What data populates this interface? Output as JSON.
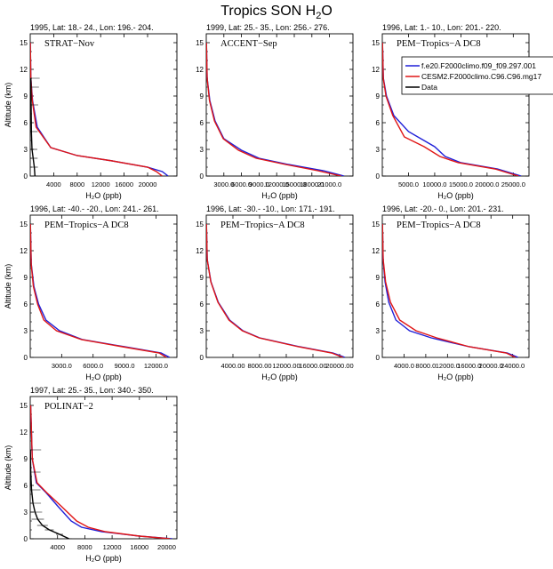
{
  "figure": {
    "title": "Tropics SON H",
    "title_sub": "2",
    "title_end": "O"
  },
  "colors": {
    "model1": "#1f1fd8",
    "model2": "#e01515",
    "data": "#000000"
  },
  "legend": {
    "entries": [
      {
        "label": "f.e20.F2000climo.f09_f09.297.001",
        "color": "#1f1fd8"
      },
      {
        "label": "CESM2.F2000climo.C96.C96.mg17",
        "color": "#e01515"
      },
      {
        "label": "Data",
        "color": "#000000"
      }
    ]
  },
  "chart_data": [
    {
      "type": "line",
      "header": "1995, Lat: 18.- 24., Lon: 196.- 204.",
      "campaign": "STRAT−Nov",
      "xlabel": "H₂O (ppb)",
      "ylabel": "Altitude (km)",
      "xlim": [
        0,
        25000
      ],
      "ylim": [
        0,
        16
      ],
      "xticks": [
        4000,
        8000,
        12000,
        16000,
        20000
      ],
      "xtick_labels": [
        "4000",
        "8000",
        "12000",
        "16000",
        "20000"
      ],
      "yticks": [
        0,
        3,
        6,
        9,
        12,
        15
      ],
      "series": [
        {
          "name": "f.e20.F2000climo.f09_f09.297.001",
          "x": [
            23500,
            22500,
            20000,
            14000,
            8000,
            3500,
            1200,
            400,
            100,
            20
          ],
          "y": [
            0,
            0.5,
            1,
            1.7,
            2.3,
            3.2,
            5.5,
            8.5,
            11,
            15
          ]
        },
        {
          "name": "CESM2.F2000climo.C96.C96.mg17",
          "x": [
            22500,
            21500,
            20000,
            14000,
            8000,
            3500,
            1000,
            350,
            100,
            20
          ],
          "y": [
            0,
            0.5,
            1,
            1.7,
            2.3,
            3.2,
            5.5,
            8.5,
            11,
            15
          ]
        },
        {
          "name": "Data",
          "x": [
            800,
            700,
            500,
            300,
            200,
            150,
            120,
            100
          ],
          "y": [
            0,
            1,
            2,
            3,
            5,
            8,
            10,
            11
          ]
        }
      ]
    },
    {
      "type": "line",
      "header": "1999, Lat: 25.- 35., Lon: 256.- 276.",
      "campaign": "ACCENT−Sep",
      "xlabel": "H₂O (ppb)",
      "ylabel": "",
      "xlim": [
        0,
        25000
      ],
      "ylim": [
        0,
        16
      ],
      "xticks": [
        3000,
        6000,
        9000,
        12000,
        15000,
        18000,
        21000
      ],
      "xtick_labels": [
        "3000.0",
        "6000.0",
        "9000.0",
        "12000.0",
        "15000.0",
        "18000.0",
        "21000.0"
      ],
      "yticks": [
        0,
        3,
        6,
        9,
        12,
        15
      ],
      "series": [
        {
          "name": "f.e20.F2000climo.f09_f09.297.001",
          "x": [
            23500,
            20000,
            14000,
            9000,
            6000,
            3000,
            1500,
            600,
            150,
            30
          ],
          "y": [
            0,
            0.6,
            1.3,
            2.0,
            2.9,
            4.2,
            6.2,
            8.5,
            11,
            15
          ]
        },
        {
          "name": "CESM2.F2000climo.C96.C96.mg17",
          "x": [
            23000,
            19000,
            13500,
            8500,
            5500,
            2900,
            1400,
            550,
            150,
            30
          ],
          "y": [
            0,
            0.6,
            1.3,
            2.0,
            2.9,
            4.2,
            6.2,
            8.5,
            11,
            15
          ]
        }
      ]
    },
    {
      "type": "line",
      "header": "1996, Lat: 1.- 10., Lon: 201.- 220.",
      "campaign": "PEM−Tropics−A DC8",
      "xlabel": "H₂O (ppb)",
      "ylabel": "",
      "xlim": [
        0,
        28000
      ],
      "ylim": [
        0,
        16
      ],
      "xticks": [
        5000,
        10000,
        15000,
        20000,
        25000
      ],
      "xtick_labels": [
        "5000.0",
        "10000.0",
        "15000.0",
        "20000.0",
        "25000.0"
      ],
      "yticks": [
        0,
        3,
        6,
        9,
        12,
        15
      ],
      "series": [
        {
          "name": "f.e20.F2000climo.f09_f09.297.001",
          "x": [
            26500,
            22000,
            15000,
            12000,
            10000,
            5000,
            2200,
            800,
            200,
            40
          ],
          "y": [
            0,
            0.8,
            1.5,
            2.2,
            3.3,
            5.0,
            6.8,
            9,
            11,
            15
          ]
        },
        {
          "name": "CESM2.F2000climo.C96.C96.mg17",
          "x": [
            26000,
            21500,
            14500,
            11000,
            8000,
            4200,
            2000,
            700,
            180,
            40
          ],
          "y": [
            0,
            0.8,
            1.5,
            2.2,
            3.3,
            4.4,
            6.8,
            9,
            11,
            15
          ]
        }
      ]
    },
    {
      "type": "line",
      "header": "1996, Lat: -40.- -20., Lon: 241.- 261.",
      "campaign": "PEM−Tropics−A DC8",
      "xlabel": "H₂O (ppb)",
      "ylabel": "Altitude (km)",
      "xlim": [
        0,
        14000
      ],
      "ylim": [
        0,
        16
      ],
      "xticks": [
        3000,
        6000,
        9000,
        12000
      ],
      "xtick_labels": [
        "3000.0",
        "6000.0",
        "9000.0",
        "12000.0"
      ],
      "yticks": [
        0,
        3,
        6,
        9,
        12,
        15
      ],
      "series": [
        {
          "name": "f.e20.F2000climo.f09_f09.297.001",
          "x": [
            13300,
            12500,
            9000,
            5000,
            2800,
            1500,
            800,
            350,
            100,
            20
          ],
          "y": [
            0,
            0.5,
            1.2,
            2.0,
            3.0,
            4.2,
            6,
            8,
            10.5,
            15
          ]
        },
        {
          "name": "CESM2.F2000climo.C96.C96.mg17",
          "x": [
            13000,
            12300,
            8800,
            4900,
            2500,
            1300,
            700,
            300,
            90,
            20
          ],
          "y": [
            0,
            0.5,
            1.2,
            2.0,
            3.0,
            4.2,
            6,
            8,
            10.5,
            15
          ]
        }
      ]
    },
    {
      "type": "line",
      "header": "1996, Lat: -30.- -10., Lon: 171.- 191.",
      "campaign": "PEM−Tropics−A DC8",
      "xlabel": "H₂O (ppb)",
      "ylabel": "",
      "xlim": [
        0,
        22000
      ],
      "ylim": [
        0,
        16
      ],
      "xticks": [
        4000,
        8000,
        12000,
        16000,
        20000
      ],
      "xtick_labels": [
        "4000.00",
        "8000.00",
        "12000.00",
        "16000.00",
        "20000.00"
      ],
      "yticks": [
        0,
        3,
        6,
        9,
        12,
        15
      ],
      "series": [
        {
          "name": "f.e20.F2000climo.f09_f09.297.001",
          "x": [
            20800,
            19000,
            14000,
            8000,
            5500,
            3500,
            1800,
            700,
            150,
            30
          ],
          "y": [
            0,
            0.5,
            1.2,
            2.2,
            3.0,
            4.2,
            6.2,
            8.5,
            11,
            15
          ]
        },
        {
          "name": "CESM2.F2000climo.C96.C96.mg17",
          "x": [
            20500,
            18800,
            13800,
            7900,
            5400,
            3400,
            1750,
            680,
            150,
            30
          ],
          "y": [
            0,
            0.5,
            1.2,
            2.2,
            3.0,
            4.2,
            6.2,
            8.5,
            11,
            15
          ]
        }
      ]
    },
    {
      "type": "line",
      "header": "1996, Lat: -20.- 0., Lon: 201.- 231.",
      "campaign": "PEM−Tropics−A DC8",
      "xlabel": "H₂O (ppb)",
      "ylabel": "",
      "xlim": [
        0,
        27000
      ],
      "ylim": [
        0,
        16
      ],
      "xticks": [
        4000,
        8000,
        12000,
        16000,
        20000,
        24000
      ],
      "xtick_labels": [
        "4000.0",
        "8000.0",
        "12000.0",
        "16000.0",
        "20000.0",
        "24000.0"
      ],
      "yticks": [
        0,
        3,
        6,
        9,
        12,
        15
      ],
      "series": [
        {
          "name": "f.e20.F2000climo.f09_f09.297.001",
          "x": [
            25000,
            23000,
            16000,
            9000,
            5000,
            2500,
            1200,
            500,
            150,
            30
          ],
          "y": [
            0,
            0.5,
            1.2,
            2.2,
            3.0,
            4.2,
            6.2,
            8.5,
            11,
            15
          ]
        },
        {
          "name": "CESM2.F2000climo.C96.C96.mg17",
          "x": [
            24500,
            22800,
            16000,
            10000,
            6200,
            3200,
            1500,
            600,
            160,
            30
          ],
          "y": [
            0,
            0.5,
            1.2,
            2.2,
            3.0,
            4.2,
            6.2,
            8.5,
            11,
            15
          ]
        }
      ]
    },
    {
      "type": "line",
      "header": "1997, Lat: 25.- 35., Lon: 340.- 350.",
      "campaign": "POLINAT−2",
      "xlabel": "H₂O (ppb)",
      "ylabel": "Altitude (km)",
      "xlim": [
        0,
        21500
      ],
      "ylim": [
        0,
        16
      ],
      "xticks": [
        4000,
        8000,
        12000,
        16000,
        20000
      ],
      "xtick_labels": [
        "4000",
        "8000",
        "12000",
        "16000",
        "20000"
      ],
      "yticks": [
        0,
        3,
        6,
        9,
        12,
        15
      ],
      "series": [
        {
          "name": "f.e20.F2000climo.f09_f09.297.001",
          "x": [
            20800,
            16000,
            10500,
            7500,
            6000,
            4000,
            2300,
            900,
            300,
            60
          ],
          "y": [
            0,
            0.3,
            0.8,
            1.3,
            2.0,
            3.7,
            5.2,
            6.3,
            9,
            15
          ]
        },
        {
          "name": "CESM2.F2000climo.C96.C96.mg17",
          "x": [
            20500,
            16000,
            11000,
            8500,
            6800,
            4500,
            2400,
            1000,
            300,
            60
          ],
          "y": [
            0,
            0.3,
            0.8,
            1.3,
            2.0,
            3.7,
            5.2,
            6.3,
            9,
            15
          ]
        },
        {
          "name": "Data",
          "x": [
            5700,
            4300,
            2800,
            1800,
            1100,
            700,
            400,
            200,
            80,
            30
          ],
          "y": [
            0,
            0.5,
            1.0,
            1.5,
            2.2,
            3.0,
            4.0,
            5.5,
            7.5,
            10
          ]
        }
      ]
    }
  ]
}
